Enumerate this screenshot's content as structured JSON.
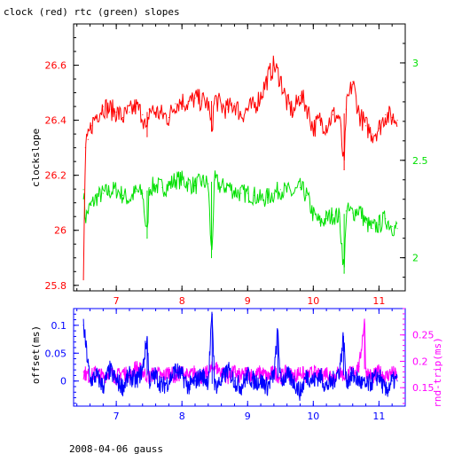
{
  "figure": {
    "title": "clock (red) rtc (green) slopes",
    "footer": "2008-04-06 gauss"
  },
  "colors": {
    "clock": "#ff0000",
    "rtc": "#00e000",
    "offset": "#0000ff",
    "rtt": "#ff00ff",
    "frame": "#000000"
  },
  "chart_data": [
    {
      "type": "line",
      "panel": "top",
      "title": "clock (red) rtc (green) slopes",
      "xlabel": "",
      "ylabel": "clockslope",
      "xlim": [
        6.35,
        11.4
      ],
      "ylim": [
        25.78,
        26.75
      ],
      "y2lim": [
        1.83,
        3.2
      ],
      "x_ticks": [
        7,
        8,
        9,
        10,
        11
      ],
      "y_ticks": [
        25.8,
        26,
        26.2,
        26.4,
        26.6
      ],
      "y2_ticks": [
        2,
        2.5,
        3
      ],
      "grid": false,
      "series": [
        {
          "name": "clock",
          "axis": "left",
          "x": [
            6.5,
            6.53,
            6.57,
            6.62,
            6.7,
            6.8,
            6.9,
            7.0,
            7.1,
            7.2,
            7.3,
            7.4,
            7.47,
            7.5,
            7.6,
            7.7,
            7.8,
            7.9,
            8.0,
            8.1,
            8.2,
            8.3,
            8.4,
            8.45,
            8.5,
            8.6,
            8.7,
            8.8,
            8.9,
            9.0,
            9.1,
            9.2,
            9.3,
            9.4,
            9.5,
            9.6,
            9.7,
            9.8,
            9.9,
            10.0,
            10.1,
            10.2,
            10.3,
            10.4,
            10.47,
            10.5,
            10.6,
            10.7,
            10.8,
            10.9,
            11.0,
            11.1,
            11.2,
            11.28
          ],
          "y": [
            25.82,
            26.3,
            26.33,
            26.38,
            26.42,
            26.45,
            26.44,
            26.43,
            26.41,
            26.43,
            26.45,
            26.42,
            26.34,
            26.44,
            26.43,
            26.42,
            26.41,
            26.46,
            26.47,
            26.46,
            26.48,
            26.47,
            26.46,
            26.36,
            26.48,
            26.45,
            26.44,
            26.46,
            26.42,
            26.44,
            26.45,
            26.49,
            26.55,
            26.6,
            26.55,
            26.46,
            26.43,
            26.49,
            26.45,
            26.37,
            26.4,
            26.38,
            26.42,
            26.41,
            26.22,
            26.44,
            26.54,
            26.42,
            26.38,
            26.35,
            26.37,
            26.42,
            26.41,
            26.4
          ]
        },
        {
          "name": "rtc",
          "axis": "right",
          "x": [
            6.5,
            6.53,
            6.57,
            6.62,
            6.7,
            6.8,
            6.9,
            7.0,
            7.1,
            7.2,
            7.3,
            7.4,
            7.47,
            7.5,
            7.6,
            7.7,
            7.8,
            7.9,
            8.0,
            8.1,
            8.2,
            8.3,
            8.4,
            8.45,
            8.5,
            8.6,
            8.7,
            8.8,
            8.9,
            9.0,
            9.1,
            9.2,
            9.3,
            9.4,
            9.5,
            9.6,
            9.7,
            9.8,
            9.9,
            10.0,
            10.1,
            10.2,
            10.3,
            10.4,
            10.47,
            10.5,
            10.6,
            10.7,
            10.8,
            10.9,
            11.0,
            11.1,
            11.2,
            11.28
          ],
          "y": [
            2.35,
            2.2,
            2.24,
            2.27,
            2.31,
            2.33,
            2.34,
            2.35,
            2.32,
            2.3,
            2.34,
            2.33,
            2.1,
            2.36,
            2.37,
            2.36,
            2.37,
            2.4,
            2.4,
            2.38,
            2.37,
            2.39,
            2.38,
            2.0,
            2.4,
            2.36,
            2.37,
            2.34,
            2.33,
            2.33,
            2.32,
            2.3,
            2.31,
            2.33,
            2.35,
            2.34,
            2.33,
            2.36,
            2.32,
            2.22,
            2.18,
            2.2,
            2.22,
            2.21,
            1.92,
            2.24,
            2.23,
            2.25,
            2.18,
            2.15,
            2.17,
            2.2,
            2.16,
            2.15
          ]
        }
      ]
    },
    {
      "type": "line",
      "panel": "bottom",
      "xlabel": "",
      "ylabel": "offset(ms)",
      "y2label": "rnd-trip(ms)",
      "xlim": [
        6.35,
        11.4
      ],
      "ylim": [
        -0.045,
        0.13
      ],
      "y2lim": [
        0.115,
        0.3
      ],
      "x_ticks": [
        7,
        8,
        9,
        10,
        11
      ],
      "y_ticks": [
        0,
        0.05,
        0.1
      ],
      "y2_ticks": [
        0.15,
        0.2,
        0.25
      ],
      "grid": false,
      "series": [
        {
          "name": "offset",
          "axis": "left",
          "x": [
            6.5,
            6.6,
            6.7,
            6.8,
            6.9,
            7.0,
            7.1,
            7.2,
            7.3,
            7.4,
            7.47,
            7.5,
            7.6,
            7.7,
            7.8,
            7.9,
            8.0,
            8.1,
            8.2,
            8.3,
            8.4,
            8.46,
            8.5,
            8.6,
            8.7,
            8.8,
            8.9,
            9.0,
            9.1,
            9.2,
            9.3,
            9.4,
            9.46,
            9.5,
            9.6,
            9.7,
            9.8,
            9.9,
            10.0,
            10.1,
            10.2,
            10.3,
            10.4,
            10.46,
            10.5,
            10.6,
            10.7,
            10.8,
            10.9,
            11.0,
            11.1,
            11.2,
            11.28
          ],
          "y": [
            0.1,
            0.0,
            0.01,
            -0.01,
            0.02,
            0.0,
            -0.01,
            0.01,
            0.0,
            0.02,
            0.08,
            0.0,
            0.01,
            -0.01,
            0.0,
            0.02,
            0.01,
            -0.01,
            0.0,
            0.01,
            0.0,
            0.12,
            -0.01,
            0.0,
            0.02,
            0.0,
            -0.01,
            0.01,
            0.0,
            0.0,
            -0.01,
            0.01,
            0.09,
            0.0,
            0.01,
            0.0,
            -0.02,
            0.01,
            0.0,
            0.01,
            -0.01,
            0.0,
            0.02,
            0.08,
            0.0,
            0.01,
            0.0,
            -0.01,
            0.0,
            0.01,
            -0.02,
            0.0,
            0.0
          ]
        },
        {
          "name": "rnd-trip",
          "axis": "right",
          "x": [
            6.5,
            6.6,
            6.7,
            6.8,
            6.9,
            7.0,
            7.1,
            7.2,
            7.3,
            7.4,
            7.5,
            7.6,
            7.7,
            7.8,
            7.9,
            8.0,
            8.1,
            8.2,
            8.3,
            8.4,
            8.5,
            8.6,
            8.7,
            8.8,
            8.9,
            9.0,
            9.1,
            9.2,
            9.3,
            9.4,
            9.5,
            9.6,
            9.7,
            9.8,
            9.9,
            10.0,
            10.1,
            10.2,
            10.3,
            10.4,
            10.5,
            10.6,
            10.7,
            10.78,
            10.8,
            10.9,
            11.0,
            11.1,
            11.2,
            11.28
          ],
          "y": [
            0.18,
            0.17,
            0.18,
            0.17,
            0.18,
            0.17,
            0.18,
            0.17,
            0.19,
            0.18,
            0.17,
            0.18,
            0.17,
            0.18,
            0.17,
            0.18,
            0.17,
            0.18,
            0.17,
            0.18,
            0.19,
            0.18,
            0.17,
            0.18,
            0.17,
            0.18,
            0.17,
            0.18,
            0.17,
            0.18,
            0.17,
            0.18,
            0.17,
            0.18,
            0.17,
            0.18,
            0.17,
            0.18,
            0.17,
            0.18,
            0.17,
            0.18,
            0.19,
            0.28,
            0.18,
            0.17,
            0.18,
            0.17,
            0.18,
            0.17
          ]
        }
      ]
    }
  ]
}
